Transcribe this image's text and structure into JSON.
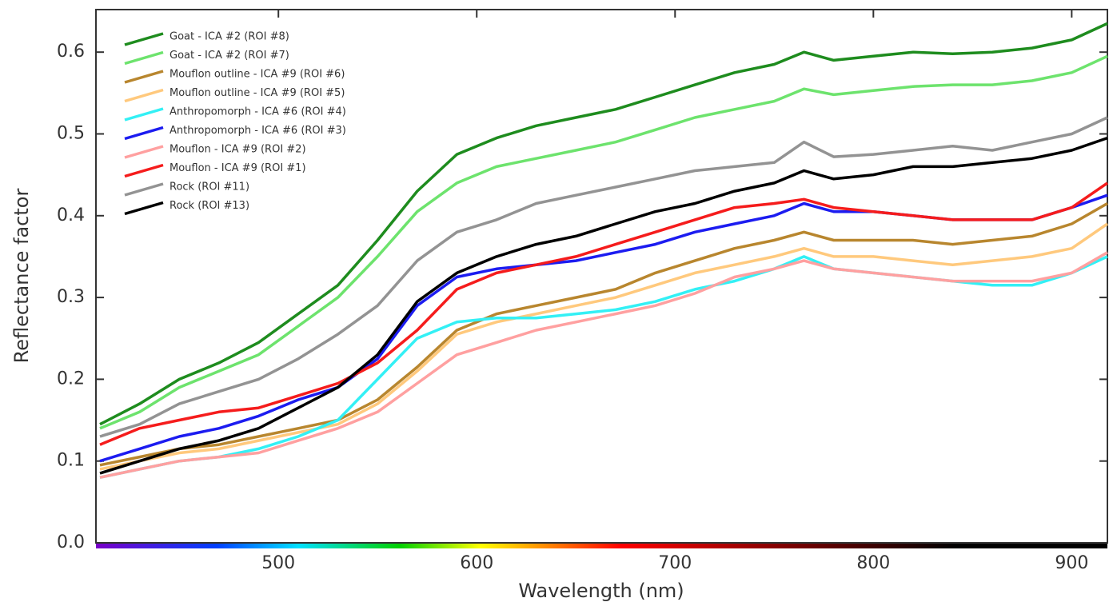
{
  "chart_data": {
    "type": "line",
    "xlabel": "Wavelength (nm)",
    "ylabel": "Reflectance factor",
    "x": [
      410,
      430,
      450,
      470,
      490,
      510,
      530,
      550,
      570,
      590,
      610,
      630,
      650,
      670,
      690,
      710,
      730,
      750,
      765,
      780,
      800,
      820,
      840,
      860,
      880,
      900,
      918
    ],
    "xlim": [
      408,
      918
    ],
    "xticks": [
      500,
      600,
      700,
      800,
      900
    ],
    "ylim": [
      0,
      0.652
    ],
    "yticks": [
      {
        "value": 0,
        "label": "0.0"
      },
      0.1,
      0.2,
      0.3,
      0.4,
      0.5,
      0.6
    ],
    "legend": "upper left",
    "series": [
      {
        "name": "Goat - ICA #2 (ROI #8)",
        "color": "#1e8c1e",
        "values": [
          0.145,
          0.17,
          0.2,
          0.22,
          0.245,
          0.28,
          0.315,
          0.37,
          0.43,
          0.475,
          0.495,
          0.51,
          0.52,
          0.53,
          0.545,
          0.56,
          0.575,
          0.585,
          0.6,
          0.59,
          0.595,
          0.6,
          0.598,
          0.6,
          0.605,
          0.615,
          0.635
        ]
      },
      {
        "name": "Goat - ICA #2 (ROI #7)",
        "color": "#6de36d",
        "values": [
          0.14,
          0.16,
          0.19,
          0.21,
          0.23,
          0.265,
          0.3,
          0.35,
          0.405,
          0.44,
          0.46,
          0.47,
          0.48,
          0.49,
          0.505,
          0.52,
          0.53,
          0.54,
          0.555,
          0.548,
          0.553,
          0.558,
          0.56,
          0.56,
          0.565,
          0.575,
          0.595
        ]
      },
      {
        "name": "Mouflon outline - ICA #9 (ROI #6)",
        "color": "#b8862e",
        "values": [
          0.095,
          0.105,
          0.115,
          0.12,
          0.13,
          0.14,
          0.15,
          0.175,
          0.215,
          0.26,
          0.28,
          0.29,
          0.3,
          0.31,
          0.33,
          0.345,
          0.36,
          0.37,
          0.38,
          0.37,
          0.37,
          0.37,
          0.365,
          0.37,
          0.375,
          0.39,
          0.415
        ]
      },
      {
        "name": "Mouflon outline - ICA #9 (ROI #5)",
        "color": "#ffc97d",
        "values": [
          0.09,
          0.1,
          0.11,
          0.115,
          0.125,
          0.135,
          0.145,
          0.17,
          0.21,
          0.255,
          0.27,
          0.28,
          0.29,
          0.3,
          0.315,
          0.33,
          0.34,
          0.35,
          0.36,
          0.35,
          0.35,
          0.345,
          0.34,
          0.345,
          0.35,
          0.36,
          0.39
        ]
      },
      {
        "name": "Anthropomorph - ICA #6 (ROI #4)",
        "color": "#33f0f5",
        "values": [
          0.08,
          0.09,
          0.1,
          0.105,
          0.115,
          0.13,
          0.15,
          0.2,
          0.25,
          0.27,
          0.275,
          0.275,
          0.28,
          0.285,
          0.295,
          0.31,
          0.32,
          0.335,
          0.35,
          0.335,
          0.33,
          0.325,
          0.32,
          0.315,
          0.315,
          0.33,
          0.35
        ]
      },
      {
        "name": "Anthropomorph - ICA #6 (ROI #3)",
        "color": "#1c1cf0",
        "values": [
          0.1,
          0.115,
          0.13,
          0.14,
          0.155,
          0.175,
          0.19,
          0.225,
          0.29,
          0.325,
          0.335,
          0.34,
          0.345,
          0.355,
          0.365,
          0.38,
          0.39,
          0.4,
          0.415,
          0.405,
          0.405,
          0.4,
          0.395,
          0.395,
          0.395,
          0.41,
          0.425
        ]
      },
      {
        "name": "Mouflon - ICA #9 (ROI #2)",
        "color": "#ffa0a0",
        "values": [
          0.08,
          0.09,
          0.1,
          0.105,
          0.11,
          0.125,
          0.14,
          0.16,
          0.195,
          0.23,
          0.245,
          0.26,
          0.27,
          0.28,
          0.29,
          0.305,
          0.325,
          0.335,
          0.345,
          0.335,
          0.33,
          0.325,
          0.32,
          0.32,
          0.32,
          0.33,
          0.355
        ]
      },
      {
        "name": "Mouflon - ICA #9 (ROI #1)",
        "color": "#f51c1c",
        "values": [
          0.12,
          0.14,
          0.15,
          0.16,
          0.165,
          0.18,
          0.195,
          0.22,
          0.26,
          0.31,
          0.33,
          0.34,
          0.35,
          0.365,
          0.38,
          0.395,
          0.41,
          0.415,
          0.42,
          0.41,
          0.405,
          0.4,
          0.395,
          0.395,
          0.395,
          0.41,
          0.44
        ]
      },
      {
        "name": "Rock (ROI #11)",
        "color": "#939393",
        "values": [
          0.13,
          0.145,
          0.17,
          0.185,
          0.2,
          0.225,
          0.255,
          0.29,
          0.345,
          0.38,
          0.395,
          0.415,
          0.425,
          0.435,
          0.445,
          0.455,
          0.46,
          0.465,
          0.49,
          0.472,
          0.475,
          0.48,
          0.485,
          0.48,
          0.49,
          0.5,
          0.52
        ]
      },
      {
        "name": "Rock (ROI #13)",
        "color": "#000000",
        "values": [
          0.085,
          0.1,
          0.115,
          0.125,
          0.14,
          0.165,
          0.19,
          0.23,
          0.295,
          0.33,
          0.35,
          0.365,
          0.375,
          0.39,
          0.405,
          0.415,
          0.43,
          0.44,
          0.455,
          0.445,
          0.45,
          0.46,
          0.46,
          0.465,
          0.47,
          0.48,
          0.495
        ]
      }
    ]
  }
}
